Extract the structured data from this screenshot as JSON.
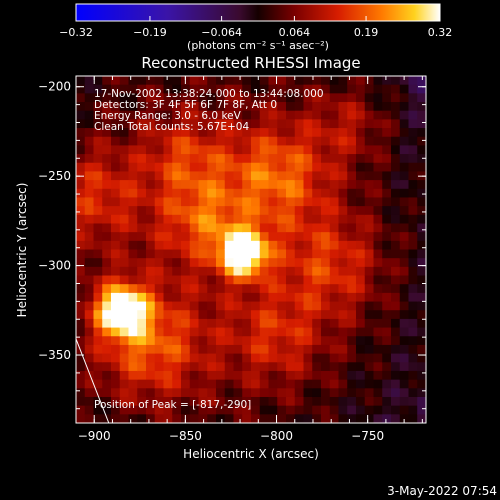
{
  "chart_data": {
    "type": "heatmap",
    "title": "Reconstructed RHESSI Image",
    "xlabel": "Heliocentric X (arcsec)",
    "ylabel": "Heliocentric Y (arcsec)",
    "xlim": [
      -910,
      -718
    ],
    "ylim": [
      -388,
      -194
    ],
    "xticks": [
      -900,
      -850,
      -800,
      -750
    ],
    "yticks": [
      -200,
      -250,
      -300,
      -350
    ],
    "colorbar": {
      "min": -0.32,
      "max": 0.32,
      "tick_values": [
        -0.32,
        -0.19,
        -0.064,
        0.064,
        0.19,
        0.32
      ],
      "tick_labels": [
        "-0.32",
        "-0.19",
        "-0.064",
        "0.064",
        "0.19",
        "0.32"
      ],
      "unit_label": "(photons cm⁻² s⁻¹ asec⁻²)"
    },
    "annotations": [
      "17-Nov-2002 13:38:24.000 to 13:44:08.000",
      "Detectors: 3F 4F 5F 6F 7F 8F, Att 0",
      "Energy Range: 3.0 - 6.0 keV",
      "Clean    Total counts: 5.67E+04"
    ],
    "peak_label": "Position of Peak = [-817,-290]",
    "peak": {
      "x": -817,
      "y": -290
    },
    "limb_line": [
      [
        -910,
        -341
      ],
      [
        -892,
        -388
      ]
    ],
    "blobs": [
      {
        "x": -818,
        "y": -293,
        "amp": 0.34,
        "sigma": 9
      },
      {
        "x": -885,
        "y": -325,
        "amp": 0.3,
        "sigma": 10
      },
      {
        "x": -870,
        "y": -345,
        "amp": 0.14,
        "sigma": 20
      },
      {
        "x": -800,
        "y": -250,
        "amp": 0.15,
        "sigma": 20
      },
      {
        "x": -840,
        "y": -275,
        "amp": 0.12,
        "sigma": 16
      },
      {
        "x": -770,
        "y": -300,
        "amp": 0.11,
        "sigma": 20
      },
      {
        "x": -850,
        "y": -240,
        "amp": 0.1,
        "sigma": 16
      },
      {
        "x": -900,
        "y": -260,
        "amp": 0.1,
        "sigma": 18
      },
      {
        "x": -800,
        "y": -340,
        "amp": 0.09,
        "sigma": 18
      },
      {
        "x": -760,
        "y": -220,
        "amp": 0.08,
        "sigma": 16
      }
    ]
  },
  "footer": {
    "timestamp": "3-May-2022 07:54"
  }
}
